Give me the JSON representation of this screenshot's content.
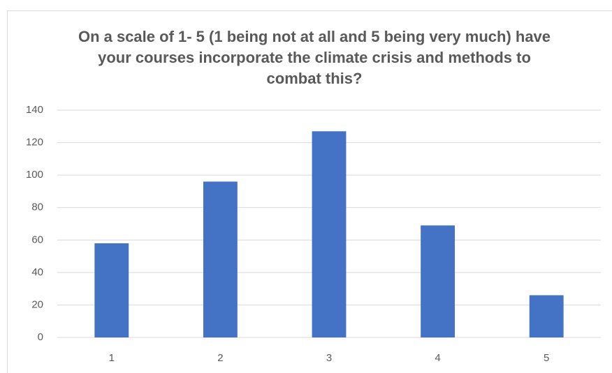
{
  "chart_data": {
    "type": "bar",
    "title": "On a scale of 1- 5 (1 being not at all and 5 being very much) have your courses incorporate the climate crisis and methods to combat this?",
    "categories": [
      "1",
      "2",
      "3",
      "4",
      "5"
    ],
    "values": [
      58,
      96,
      127,
      69,
      26
    ],
    "color": "#4472c4",
    "ylim": [
      0,
      140
    ],
    "yticks": [
      0,
      20,
      40,
      60,
      80,
      100,
      120,
      140
    ],
    "grid": true
  }
}
